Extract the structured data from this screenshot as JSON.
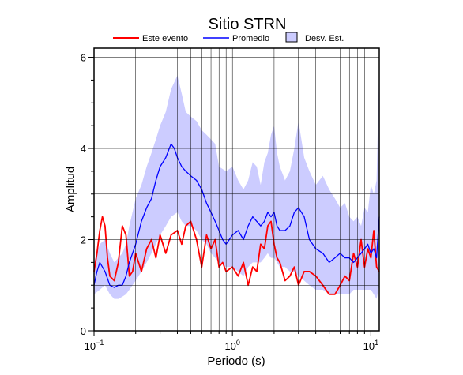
{
  "chart_data": {
    "type": "line",
    "title": "Sitio STRN",
    "xlabel": "Periodo (s)",
    "ylabel": "Amplitud",
    "xscale": "log",
    "xlim": [
      0.1,
      11.5
    ],
    "ylim": [
      0,
      6.2
    ],
    "grid": true,
    "legend_position": "top",
    "xticks": [
      {
        "value": 0.1,
        "base": "10",
        "exp": "−1"
      },
      {
        "value": 1,
        "base": "10",
        "exp": "0"
      },
      {
        "value": 10,
        "base": "10",
        "exp": "1"
      }
    ],
    "yticks": [
      0,
      2,
      4,
      6
    ],
    "series": [
      {
        "name": "Este evento",
        "color": "#ff0000",
        "x": [
          0.1,
          0.105,
          0.11,
          0.115,
          0.12,
          0.125,
          0.13,
          0.14,
          0.15,
          0.16,
          0.17,
          0.18,
          0.19,
          0.2,
          0.22,
          0.24,
          0.26,
          0.28,
          0.3,
          0.33,
          0.36,
          0.4,
          0.43,
          0.46,
          0.5,
          0.55,
          0.6,
          0.65,
          0.7,
          0.75,
          0.8,
          0.85,
          0.9,
          1.0,
          1.1,
          1.2,
          1.3,
          1.4,
          1.5,
          1.6,
          1.7,
          1.8,
          1.9,
          2.0,
          2.1,
          2.2,
          2.4,
          2.6,
          2.8,
          3.0,
          3.3,
          3.6,
          4.0,
          4.5,
          5.0,
          5.5,
          6.0,
          6.5,
          7.0,
          7.5,
          8.0,
          8.5,
          9.0,
          9.5,
          10.0,
          10.5,
          11.0,
          11.5
        ],
        "y": [
          1.3,
          1.7,
          2.2,
          2.5,
          2.3,
          1.6,
          1.2,
          1.1,
          1.5,
          2.3,
          2.1,
          1.2,
          1.3,
          1.7,
          1.3,
          1.8,
          2.0,
          1.6,
          2.1,
          1.7,
          2.1,
          2.2,
          1.9,
          2.3,
          2.4,
          2.0,
          1.4,
          2.1,
          1.8,
          2.0,
          1.4,
          1.5,
          1.3,
          1.4,
          1.2,
          1.5,
          1.0,
          1.4,
          1.3,
          1.9,
          1.8,
          2.3,
          2.4,
          1.9,
          1.6,
          1.5,
          1.1,
          1.2,
          1.4,
          1.0,
          1.3,
          1.3,
          1.2,
          1.0,
          0.8,
          0.8,
          1.0,
          1.2,
          1.1,
          1.7,
          1.4,
          2.0,
          1.4,
          1.8,
          1.6,
          2.2,
          1.4,
          1.3
        ]
      },
      {
        "name": "Promedio",
        "color": "#0000ff",
        "x": [
          0.1,
          0.105,
          0.11,
          0.12,
          0.13,
          0.14,
          0.15,
          0.16,
          0.17,
          0.18,
          0.2,
          0.22,
          0.24,
          0.26,
          0.28,
          0.3,
          0.33,
          0.36,
          0.38,
          0.4,
          0.43,
          0.46,
          0.5,
          0.55,
          0.6,
          0.65,
          0.7,
          0.75,
          0.8,
          0.85,
          0.9,
          1.0,
          1.1,
          1.2,
          1.3,
          1.4,
          1.5,
          1.6,
          1.7,
          1.8,
          1.9,
          2.0,
          2.1,
          2.2,
          2.4,
          2.6,
          2.8,
          3.0,
          3.3,
          3.6,
          4.0,
          4.5,
          5.0,
          5.5,
          6.0,
          6.5,
          7.0,
          7.5,
          8.0,
          8.5,
          9.0,
          9.5,
          10.0,
          10.5,
          11.0,
          11.5
        ],
        "y": [
          1.0,
          1.3,
          1.5,
          1.3,
          1.0,
          0.95,
          1.0,
          1.0,
          1.2,
          1.5,
          1.9,
          2.4,
          2.7,
          2.9,
          3.3,
          3.6,
          3.8,
          4.1,
          4.0,
          3.8,
          3.6,
          3.5,
          3.4,
          3.3,
          3.1,
          2.8,
          2.6,
          2.4,
          2.2,
          2.0,
          1.9,
          2.1,
          2.2,
          2.0,
          2.3,
          2.5,
          2.4,
          2.3,
          2.4,
          2.6,
          2.5,
          2.6,
          2.3,
          2.2,
          2.2,
          2.3,
          2.6,
          2.7,
          2.5,
          2.0,
          1.8,
          1.7,
          1.5,
          1.6,
          1.7,
          1.6,
          1.6,
          1.5,
          1.6,
          1.7,
          1.8,
          1.9,
          1.7,
          1.8,
          1.6,
          2.5
        ]
      }
    ],
    "band": {
      "name": "Desv. Est.",
      "color": "#ccccff",
      "x": [
        0.1,
        0.11,
        0.12,
        0.13,
        0.14,
        0.15,
        0.16,
        0.17,
        0.18,
        0.2,
        0.22,
        0.24,
        0.26,
        0.28,
        0.3,
        0.33,
        0.36,
        0.4,
        0.43,
        0.46,
        0.5,
        0.55,
        0.6,
        0.65,
        0.7,
        0.75,
        0.8,
        0.9,
        1.0,
        1.1,
        1.2,
        1.3,
        1.4,
        1.5,
        1.6,
        1.7,
        1.8,
        1.9,
        2.0,
        2.1,
        2.2,
        2.4,
        2.6,
        2.8,
        3.0,
        3.3,
        3.6,
        4.0,
        4.5,
        5.0,
        5.5,
        6.0,
        6.5,
        7.0,
        7.5,
        8.0,
        8.5,
        9.0,
        9.5,
        10.0,
        10.5,
        11.0,
        11.5
      ],
      "upper": [
        1.5,
        1.9,
        2.0,
        1.7,
        1.5,
        1.6,
        1.7,
        1.9,
        2.3,
        2.9,
        3.2,
        3.6,
        3.9,
        4.2,
        4.5,
        4.8,
        5.3,
        5.6,
        5.2,
        4.8,
        4.7,
        4.6,
        4.4,
        4.3,
        4.2,
        4.1,
        3.6,
        3.5,
        3.6,
        3.3,
        3.1,
        3.3,
        3.7,
        3.6,
        3.2,
        3.7,
        3.9,
        4.3,
        4.5,
        3.9,
        3.6,
        3.3,
        3.5,
        4.0,
        4.6,
        3.8,
        3.5,
        3.2,
        3.4,
        3.1,
        2.9,
        2.7,
        2.8,
        2.5,
        2.4,
        2.5,
        2.3,
        2.7,
        2.6,
        3.2,
        3.0,
        3.3,
        5.8
      ],
      "lower": [
        0.8,
        0.9,
        1.0,
        0.8,
        0.7,
        0.7,
        0.75,
        0.8,
        0.9,
        1.1,
        1.3,
        1.5,
        1.7,
        1.9,
        2.1,
        2.3,
        2.5,
        2.6,
        2.4,
        2.3,
        2.3,
        2.2,
        2.0,
        1.9,
        1.7,
        1.6,
        1.5,
        1.4,
        1.4,
        1.3,
        1.2,
        1.4,
        1.5,
        1.5,
        1.5,
        1.6,
        1.7,
        1.6,
        1.6,
        1.5,
        1.4,
        1.4,
        1.3,
        1.3,
        1.2,
        1.1,
        1.0,
        0.9,
        0.9,
        0.8,
        0.8,
        0.8,
        0.8,
        0.8,
        0.9,
        0.9,
        0.9,
        0.9,
        0.9,
        0.9,
        0.8,
        0.7,
        1.0
      ]
    }
  }
}
